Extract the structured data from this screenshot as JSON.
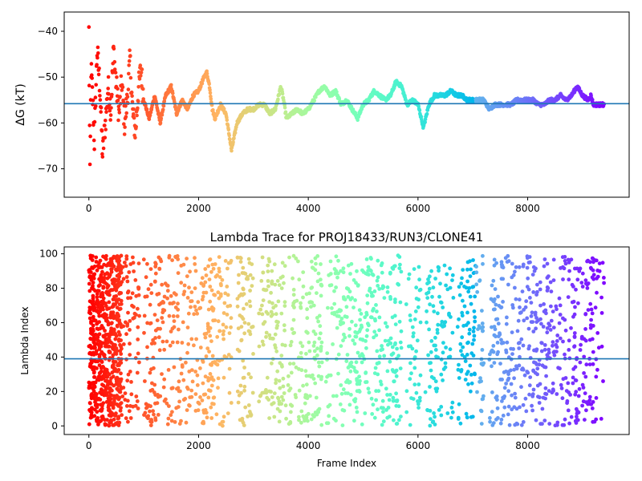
{
  "chart_data": [
    {
      "type": "scatter",
      "title": "",
      "xlabel": "",
      "ylabel": "ΔG (kT)",
      "xlim": [
        -450,
        9850
      ],
      "ylim": [
        -76.2,
        -35.8
      ],
      "xticks": [
        0,
        2000,
        4000,
        6000,
        8000
      ],
      "yticks": [
        -70,
        -60,
        -50,
        -40
      ],
      "x_tick_labels": [
        "0",
        "2000",
        "4000",
        "6000",
        "8000"
      ],
      "y_tick_labels": [
        "−70",
        "−60",
        "−50",
        "−40"
      ],
      "colormap": "rainbow, red at frame 0 to violet at last frame",
      "hline": {
        "y": -55.8,
        "color": "#1f77b4"
      },
      "trend": [
        [
          0,
          -40
        ],
        [
          20,
          -72
        ],
        [
          40,
          -48
        ],
        [
          70,
          -55
        ],
        [
          100,
          -64
        ],
        [
          150,
          -44
        ],
        [
          200,
          -52
        ],
        [
          250,
          -67
        ],
        [
          300,
          -60
        ],
        [
          350,
          -52
        ],
        [
          400,
          -57
        ],
        [
          450,
          -44
        ],
        [
          500,
          -52
        ],
        [
          550,
          -58
        ],
        [
          600,
          -51
        ],
        [
          650,
          -60
        ],
        [
          700,
          -55
        ],
        [
          750,
          -46
        ],
        [
          800,
          -58
        ],
        [
          850,
          -62
        ],
        [
          900,
          -53
        ],
        [
          950,
          -48
        ],
        [
          1000,
          -55
        ],
        [
          1100,
          -59
        ],
        [
          1200,
          -54
        ],
        [
          1300,
          -60
        ],
        [
          1400,
          -54
        ],
        [
          1500,
          -52
        ],
        [
          1600,
          -58
        ],
        [
          1700,
          -55
        ],
        [
          1800,
          -57
        ],
        [
          1900,
          -54
        ],
        [
          2000,
          -53
        ],
        [
          2100,
          -50
        ],
        [
          2150,
          -49
        ],
        [
          2200,
          -52
        ],
        [
          2250,
          -57
        ],
        [
          2300,
          -59
        ],
        [
          2400,
          -56
        ],
        [
          2500,
          -58
        ],
        [
          2600,
          -66
        ],
        [
          2650,
          -63
        ],
        [
          2700,
          -60
        ],
        [
          2800,
          -58
        ],
        [
          2900,
          -57
        ],
        [
          3000,
          -57
        ],
        [
          3100,
          -56
        ],
        [
          3200,
          -56
        ],
        [
          3300,
          -58
        ],
        [
          3400,
          -57
        ],
        [
          3500,
          -52
        ],
        [
          3550,
          -55
        ],
        [
          3600,
          -59
        ],
        [
          3700,
          -58
        ],
        [
          3800,
          -57
        ],
        [
          3900,
          -58
        ],
        [
          4000,
          -57
        ],
        [
          4100,
          -55
        ],
        [
          4200,
          -53
        ],
        [
          4300,
          -52
        ],
        [
          4400,
          -54
        ],
        [
          4500,
          -53
        ],
        [
          4600,
          -56
        ],
        [
          4700,
          -55
        ],
        [
          4800,
          -57
        ],
        [
          4900,
          -59
        ],
        [
          5000,
          -56
        ],
        [
          5100,
          -55
        ],
        [
          5200,
          -53
        ],
        [
          5300,
          -54
        ],
        [
          5400,
          -55
        ],
        [
          5500,
          -54
        ],
        [
          5600,
          -51
        ],
        [
          5700,
          -52
        ],
        [
          5800,
          -56
        ],
        [
          5900,
          -55
        ],
        [
          6000,
          -56
        ],
        [
          6100,
          -61
        ],
        [
          6200,
          -56
        ],
        [
          6300,
          -54
        ],
        [
          6400,
          -54
        ],
        [
          6500,
          -54
        ],
        [
          6600,
          -53
        ],
        [
          6700,
          -54
        ],
        [
          6800,
          -54
        ],
        [
          6900,
          -55
        ],
        [
          7000,
          -55
        ],
        [
          7100,
          -55
        ],
        [
          7200,
          -55
        ],
        [
          7300,
          -57
        ],
        [
          7400,
          -56
        ],
        [
          7500,
          -56
        ],
        [
          7600,
          -56
        ],
        [
          7700,
          -56
        ],
        [
          7800,
          -55
        ],
        [
          7900,
          -55
        ],
        [
          8000,
          -55
        ],
        [
          8100,
          -55
        ],
        [
          8200,
          -56
        ],
        [
          8300,
          -56
        ],
        [
          8400,
          -55
        ],
        [
          8500,
          -55
        ],
        [
          8600,
          -54
        ],
        [
          8700,
          -55
        ],
        [
          8800,
          -54
        ],
        [
          8900,
          -52
        ],
        [
          9000,
          -54
        ],
        [
          9100,
          -55
        ],
        [
          9150,
          -54
        ],
        [
          9200,
          -56
        ],
        [
          9300,
          -56
        ],
        [
          9400,
          -56
        ]
      ]
    },
    {
      "type": "scatter",
      "title": "Lambda Trace for PROJ18433/RUN3/CLONE41",
      "xlabel": "Frame Index",
      "ylabel": "Lambda Index",
      "xlim": [
        -450,
        9850
      ],
      "ylim": [
        -5,
        104
      ],
      "xticks": [
        0,
        2000,
        4000,
        6000,
        8000
      ],
      "yticks": [
        0,
        20,
        40,
        60,
        80,
        100
      ],
      "x_tick_labels": [
        "0",
        "2000",
        "4000",
        "6000",
        "8000"
      ],
      "y_tick_labels": [
        "0",
        "20",
        "40",
        "60",
        "80",
        "100"
      ],
      "colormap": "rainbow, red at frame 0 to violet at last frame",
      "hline": {
        "y": 39,
        "color": "#1f77b4"
      },
      "x_range": [
        0,
        9400
      ],
      "y_range": [
        0,
        99
      ],
      "points_estimated": 2600
    }
  ]
}
